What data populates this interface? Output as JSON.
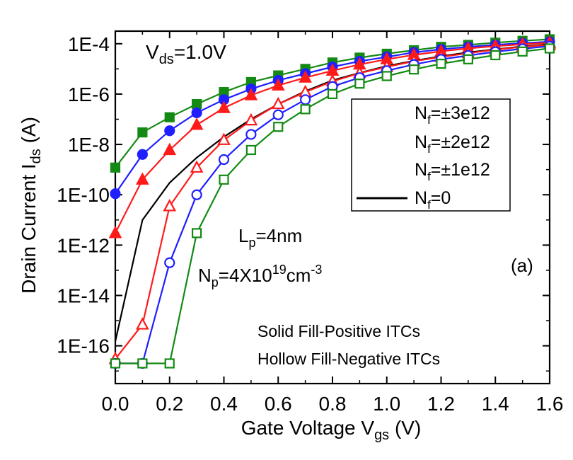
{
  "chart_data": {
    "type": "line",
    "xlabel": "Gate Voltage V",
    "xlabel_sub": "gs",
    "xlabel_unit": " (V)",
    "ylabel": "Drain Current I",
    "ylabel_sub": "ds",
    "ylabel_unit": " (A)",
    "xlim": [
      0.0,
      1.6
    ],
    "ylim_log10": [
      -17.5,
      -3.5
    ],
    "y_scale": "log",
    "grid": false,
    "x_ticks": [
      "0.0",
      "0.2",
      "0.4",
      "0.6",
      "0.8",
      "1.0",
      "1.2",
      "1.4",
      "1.6"
    ],
    "y_ticks": [
      "1E-16",
      "1E-14",
      "1E-12",
      "1E-10",
      "1E-8",
      "1E-6",
      "1E-4"
    ],
    "annotations": {
      "vds_main": "V",
      "vds_sub": "ds",
      "vds_tail": "=1.0V",
      "lp_main": "L",
      "lp_sub": "p",
      "lp_tail": "=4nm",
      "np_main": "N",
      "np_sub": "p",
      "np_mid": "=4X10",
      "np_sup": "19",
      "np_tail": "cm",
      "np_sup2": "-3",
      "panel_label": "(a)",
      "note1": "Solid Fill-Positive ITCs",
      "note2": "Hollow Fill-Negative ITCs"
    },
    "legend": {
      "placement": "top-right",
      "entries": [
        {
          "main": "N",
          "sub": "f",
          "tail": "=±3e12"
        },
        {
          "main": "N",
          "sub": "f",
          "tail": "=±2e12"
        },
        {
          "main": "N",
          "sub": "f",
          "tail": "=±1e12"
        },
        {
          "main": "N",
          "sub": "f",
          "tail": "=0"
        }
      ]
    },
    "x": [
      0.0,
      0.1,
      0.2,
      0.3,
      0.4,
      0.5,
      0.6,
      0.7,
      0.8,
      0.9,
      1.0,
      1.1,
      1.2,
      1.3,
      1.4,
      1.5,
      1.6
    ],
    "series": [
      {
        "key": "p3",
        "color": "#138a13",
        "marker": "square",
        "filled": true,
        "values": [
          1.2e-09,
          3e-08,
          1.2e-07,
          4e-07,
          1.2e-06,
          3e-06,
          5.5e-06,
          1e-05,
          1.8e-05,
          2.8e-05,
          4e-05,
          5.5e-05,
          7.5e-05,
          9e-05,
          0.00011,
          0.00013,
          0.00015
        ]
      },
      {
        "key": "p2",
        "color": "#1f1fff",
        "marker": "circle",
        "filled": true,
        "values": [
          1.1e-10,
          4e-09,
          3.5e-08,
          1.8e-07,
          6e-07,
          1.6e-06,
          3.5e-06,
          6.5e-06,
          1.2e-05,
          2e-05,
          3e-05,
          4.5e-05,
          6e-05,
          7.5e-05,
          9e-05,
          0.000105,
          0.00012
        ]
      },
      {
        "key": "p1",
        "color": "#ff1a1a",
        "marker": "triangle",
        "filled": true,
        "values": [
          3e-12,
          4e-10,
          6e-09,
          6e-08,
          2.8e-07,
          9e-07,
          2.2e-06,
          4.5e-06,
          8.5e-06,
          1.5e-05,
          2.4e-05,
          3.6e-05,
          5e-05,
          6.5e-05,
          8e-05,
          9.5e-05,
          0.00011
        ]
      },
      {
        "key": "z",
        "color": "#000000",
        "marker": "none",
        "filled": false,
        "values": [
          1.5e-16,
          1e-11,
          3e-10,
          3e-09,
          2e-08,
          1e-07,
          4e-07,
          1.3e-06,
          3.5e-06,
          7e-06,
          1.3e-05,
          2.1e-05,
          3.2e-05,
          4.5e-05,
          6e-05,
          7.8e-05,
          9.5e-05
        ]
      },
      {
        "key": "n1",
        "color": "#ff1a1a",
        "marker": "triangle",
        "filled": false,
        "values": [
          3e-17,
          7e-16,
          3.5e-11,
          1.2e-09,
          1.5e-08,
          9e-08,
          4e-07,
          1.2e-06,
          3.2e-06,
          6.8e-06,
          1.2e-05,
          2e-05,
          3e-05,
          4.2e-05,
          5.8e-05,
          7.5e-05,
          9e-05
        ]
      },
      {
        "key": "n2",
        "color": "#1f1fff",
        "marker": "circle",
        "filled": false,
        "values": [
          2e-17,
          2e-17,
          2e-13,
          1e-10,
          2.5e-09,
          2.5e-08,
          1.5e-07,
          6e-07,
          2e-06,
          4.5e-06,
          8.5e-06,
          1.5e-05,
          2.4e-05,
          3.4e-05,
          4.8e-05,
          6.3e-05,
          8e-05
        ]
      },
      {
        "key": "n3",
        "color": "#138a13",
        "marker": "square",
        "filled": false,
        "values": [
          2e-17,
          2e-17,
          2e-17,
          3e-12,
          4e-10,
          6e-09,
          5e-08,
          2.5e-07,
          1e-06,
          2.6e-06,
          5.2e-06,
          9.5e-06,
          1.6e-05,
          2.4e-05,
          3.5e-05,
          4.9e-05,
          6.5e-05
        ]
      }
    ]
  }
}
